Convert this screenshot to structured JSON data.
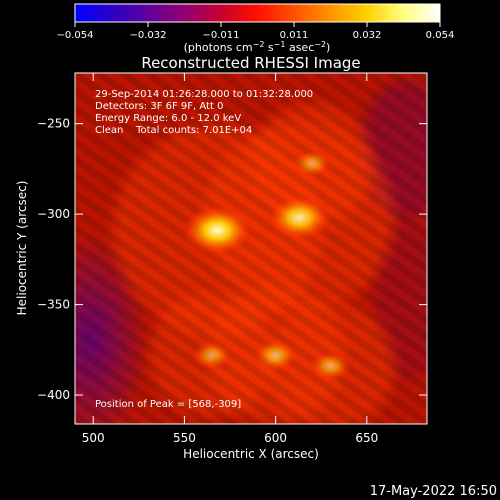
{
  "chart_data": {
    "type": "heatmap",
    "title": "Reconstructed RHESSI Image",
    "xlabel": "Heliocentric X (arcsec)",
    "ylabel": "Heliocentric Y (arcsec)",
    "xlim": [
      490,
      683
    ],
    "ylim": [
      -416,
      -222
    ],
    "x_ticks": [
      "500",
      "550",
      "600",
      "650"
    ],
    "y_ticks": [
      "-250",
      "-300",
      "-350",
      "-400"
    ],
    "colorbar": {
      "range": [
        -0.054,
        0.054
      ],
      "tick_labels": [
        "−0.054",
        "−0.032",
        "−0.011",
        "0.011",
        "0.032",
        "0.054"
      ],
      "units_main": "(photons cm",
      "units_exp1": "−2",
      "units_mid": " s",
      "units_exp2": "−1",
      "units_tail": " asec",
      "units_exp3": "−2",
      "units_close": ")",
      "colormap": [
        "#0000ff",
        "#2a00c8",
        "#60009a",
        "#920070",
        "#c80030",
        "#ff1000",
        "#ff5000",
        "#ff9400",
        "#ffd000",
        "#ffff80",
        "#ffffff"
      ]
    },
    "annotations": [
      "29-Sep-2014 01:26:28.000 to 01:32:28.000",
      "Detectors: 3F 6F 9F, Att 0",
      "Energy Range: 6.0 - 12.0 keV",
      "Clean    Total counts: 7.01E+04"
    ],
    "peak_label": "Position of Peak = [568,-309]",
    "sources": [
      {
        "x": 568,
        "y": -309,
        "intensity": 0.054
      },
      {
        "x": 613,
        "y": -302,
        "intensity": 0.045
      },
      {
        "x": 600,
        "y": -378,
        "intensity": 0.022
      },
      {
        "x": 630,
        "y": -384,
        "intensity": 0.018
      },
      {
        "x": 565,
        "y": -378,
        "intensity": 0.016
      },
      {
        "x": 620,
        "y": -272,
        "intensity": 0.015
      }
    ],
    "timestamp": "17-May-2022 16:50"
  }
}
